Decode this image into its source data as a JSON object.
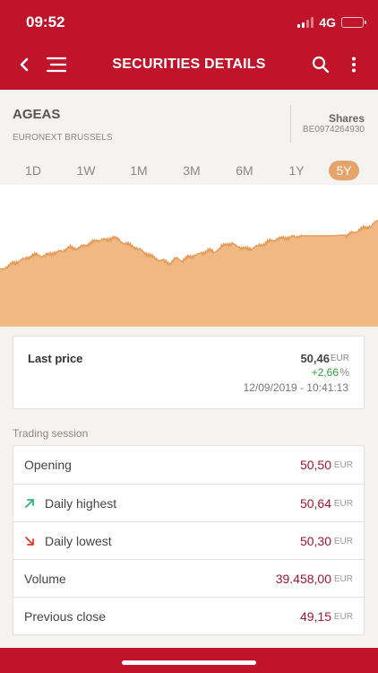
{
  "status_bar": {
    "time": "09:52",
    "network": "4G"
  },
  "nav": {
    "title": "SECURITIES DETAILS"
  },
  "security": {
    "name": "AGEAS",
    "market": "EURONEXT BRUSSELS",
    "type": "Shares",
    "isin": "BE0974264930"
  },
  "periods": [
    {
      "label": "1D",
      "active": false
    },
    {
      "label": "1W",
      "active": false
    },
    {
      "label": "1M",
      "active": false
    },
    {
      "label": "3M",
      "active": false
    },
    {
      "label": "6M",
      "active": false
    },
    {
      "label": "1Y",
      "active": false
    },
    {
      "label": "5Y",
      "active": true
    }
  ],
  "chart_data": {
    "type": "area",
    "title": "",
    "xlabel": "",
    "ylabel": "",
    "grid": false,
    "legend": "none",
    "color": "#f0b883",
    "line_color": "#e49a55",
    "x": [
      0,
      1,
      2,
      3,
      4,
      5,
      6,
      7,
      8,
      9,
      10,
      11,
      12,
      13,
      14,
      15,
      16,
      17,
      18,
      19,
      20,
      21,
      22,
      23,
      24,
      25,
      26,
      27,
      28,
      29,
      30,
      31,
      32,
      33,
      34,
      35,
      36,
      37,
      38,
      39,
      40,
      41,
      42,
      43,
      44,
      45,
      46,
      47,
      48,
      49,
      50,
      51,
      52,
      53,
      54,
      55,
      56,
      57,
      58,
      59,
      60
    ],
    "values": [
      0.3,
      0.36,
      0.42,
      0.47,
      0.51,
      0.56,
      0.58,
      0.55,
      0.6,
      0.62,
      0.66,
      0.71,
      0.69,
      0.72,
      0.77,
      0.82,
      0.86,
      0.84,
      0.9,
      0.83,
      0.77,
      0.74,
      0.68,
      0.62,
      0.55,
      0.5,
      0.46,
      0.43,
      0.52,
      0.48,
      0.54,
      0.57,
      0.6,
      0.66,
      0.63,
      0.71,
      0.78,
      0.76,
      0.72,
      0.68,
      0.7,
      0.74,
      0.78,
      0.83,
      0.86,
      0.88,
      0.89,
      0.91,
      0.92,
      0.92,
      0.92,
      0.92,
      0.92,
      0.92,
      0.93,
      0.93,
      0.97,
      1.02,
      1.07,
      1.1,
      1.2
    ]
  },
  "last_price": {
    "label": "Last price",
    "value": "50,46",
    "currency": "EUR",
    "change": "+2,66",
    "change_unit": "%",
    "datetime": "12/09/2019 - 10:41:13"
  },
  "trading_session": {
    "title": "Trading session",
    "rows": [
      {
        "label": "Opening",
        "value": "50,50",
        "currency": "EUR",
        "icon": ""
      },
      {
        "label": "Daily highest",
        "value": "50,64",
        "currency": "EUR",
        "icon": "arrow-up-right-icon"
      },
      {
        "label": "Daily lowest",
        "value": "50,30",
        "currency": "EUR",
        "icon": "arrow-down-right-icon"
      },
      {
        "label": "Volume",
        "value": "39.458,00",
        "currency": "EUR",
        "icon": ""
      },
      {
        "label": "Previous close",
        "value": "49,15",
        "currency": "EUR",
        "icon": ""
      }
    ]
  },
  "colors": {
    "brand": "#c0142b",
    "accent": "#e7a46a",
    "value_text": "#9b1730",
    "positive": "#2e9d3d",
    "up_arrow": "#2bb673",
    "down_arrow": "#e23c26"
  }
}
